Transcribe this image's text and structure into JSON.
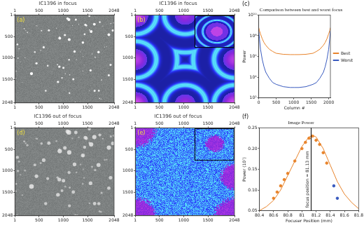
{
  "chart_data": [
    {
      "type": "image",
      "title": "IC1396 in focus",
      "annotations": [
        {
          "text": "(a)"
        }
      ],
      "xlim": [
        1,
        2048
      ],
      "ylim": [
        1,
        2048
      ],
      "xticks": [
        1,
        500,
        1000,
        1500,
        2048
      ],
      "yticks": [
        1,
        500,
        1000,
        1500,
        2048
      ]
    },
    {
      "type": "image",
      "title": "IC1396 in focus",
      "annotations": [
        {
          "text": "(b)"
        }
      ],
      "xlim": [
        1,
        2048
      ],
      "ylim": [
        1,
        2048
      ],
      "xticks": [
        1,
        500,
        1000,
        1500,
        2048
      ],
      "yticks": [
        1,
        500,
        1000,
        1500,
        2048
      ]
    },
    {
      "type": "line",
      "title": "Comparison between best and worst focus",
      "annotations": [
        {
          "text": "(c)"
        }
      ],
      "xlabel": "Column #",
      "ylabel": "Power",
      "log": "y",
      "legend": "right",
      "xlim": [
        0,
        2048
      ],
      "xticks": [
        0,
        500,
        1000,
        1500,
        2000
      ],
      "ylim": [
        100,
        10000000000
      ],
      "yticks": [
        {
          "value": 100,
          "label": "10²"
        },
        {
          "value": 10000,
          "label": "10⁴"
        },
        {
          "value": 1000000,
          "label": "10⁶"
        },
        {
          "value": 100000000,
          "label": "10⁸"
        },
        {
          "value": 10000000000,
          "label": "10¹⁰"
        }
      ],
      "x": [
        0,
        20,
        50,
        100,
        150,
        200,
        300,
        400,
        500,
        700,
        900,
        1024,
        1148,
        1348,
        1548,
        1648,
        1748,
        1848,
        1898,
        1948,
        1998,
        2028,
        2048
      ],
      "series": [
        {
          "name": "Best",
          "color": "#e8842c",
          "values": [
            600000000,
            300000000,
            150000000,
            50000000,
            22000000,
            12000000,
            5000000,
            3000000,
            2000000,
            1600000,
            1500000,
            1500000,
            1500000,
            1600000,
            2000000,
            3000000,
            5000000,
            12000000,
            22000000,
            50000000,
            150000000,
            300000000,
            600000000
          ]
        },
        {
          "name": "Worst",
          "color": "#3a5bbf",
          "values": [
            300000000,
            50000000,
            5000000,
            500000,
            100000,
            30000,
            8000,
            3000,
            2000,
            1200,
            1000,
            1000,
            1000,
            1200,
            2000,
            3000,
            8000,
            30000,
            100000,
            500000,
            5000000,
            50000000,
            300000000
          ]
        }
      ]
    },
    {
      "type": "image",
      "title": "IC1396 out of focus",
      "annotations": [
        {
          "text": "(d)"
        }
      ],
      "xlim": [
        1,
        2048
      ],
      "ylim": [
        1,
        2048
      ],
      "xticks": [
        1,
        500,
        1000,
        1500,
        2048
      ],
      "yticks": [
        1,
        500,
        1000,
        1500,
        2048
      ]
    },
    {
      "type": "image",
      "title": "IC1396 out of focus",
      "annotations": [
        {
          "text": "(e)"
        }
      ],
      "xlim": [
        1,
        2048
      ],
      "ylim": [
        1,
        2048
      ],
      "xticks": [
        1,
        500,
        1000,
        1500,
        2048
      ],
      "yticks": [
        1,
        500,
        1000,
        1500,
        2048
      ]
    },
    {
      "type": "scatter",
      "title": "Image Power",
      "annotations": [
        {
          "text": "(f)"
        },
        {
          "text": "focus position = 81.13 mm",
          "x": 81.13
        }
      ],
      "xlabel": "Focuser Position (mm)",
      "ylabel": "Power (10⁷)",
      "xlim": [
        80.4,
        81.8
      ],
      "xticks": [
        80.4,
        80.6,
        80.8,
        81.0,
        81.2,
        81.4,
        81.6,
        81.8
      ],
      "ylim": [
        0.05,
        0.25
      ],
      "yticks": [
        0.05,
        {
          "value": 0.1,
          "label": "0.10"
        },
        0.15,
        {
          "value": 0.2,
          "label": "0.20"
        },
        0.25
      ],
      "series": [
        {
          "type": "line",
          "color": "#e8842c",
          "x": [
            80.4,
            80.5,
            80.6,
            80.7,
            80.8,
            80.9,
            81.0,
            81.1,
            81.15,
            81.2,
            81.3,
            81.4,
            81.5,
            81.6,
            81.7,
            81.8
          ],
          "values": [
            0.05,
            0.06,
            0.075,
            0.1,
            0.135,
            0.17,
            0.205,
            0.228,
            0.232,
            0.228,
            0.2,
            0.16,
            0.12,
            0.09,
            0.07,
            0.055
          ]
        },
        {
          "type": "scatter",
          "marker": "circle",
          "color": "#e8842c",
          "x": [
            80.6,
            80.65,
            80.7,
            80.75,
            80.8,
            80.9,
            81.0,
            81.05,
            81.1,
            81.15,
            81.2,
            81.25,
            81.3,
            81.35
          ],
          "values": [
            0.08,
            0.095,
            0.11,
            0.125,
            0.14,
            0.17,
            0.2,
            0.215,
            0.225,
            0.23,
            0.22,
            0.21,
            0.19,
            0.165
          ]
        },
        {
          "type": "scatter",
          "marker": "circle",
          "color": "#3a5bbf",
          "x": [
            81.45,
            81.5
          ],
          "values": [
            0.11,
            0.08
          ]
        }
      ]
    }
  ]
}
